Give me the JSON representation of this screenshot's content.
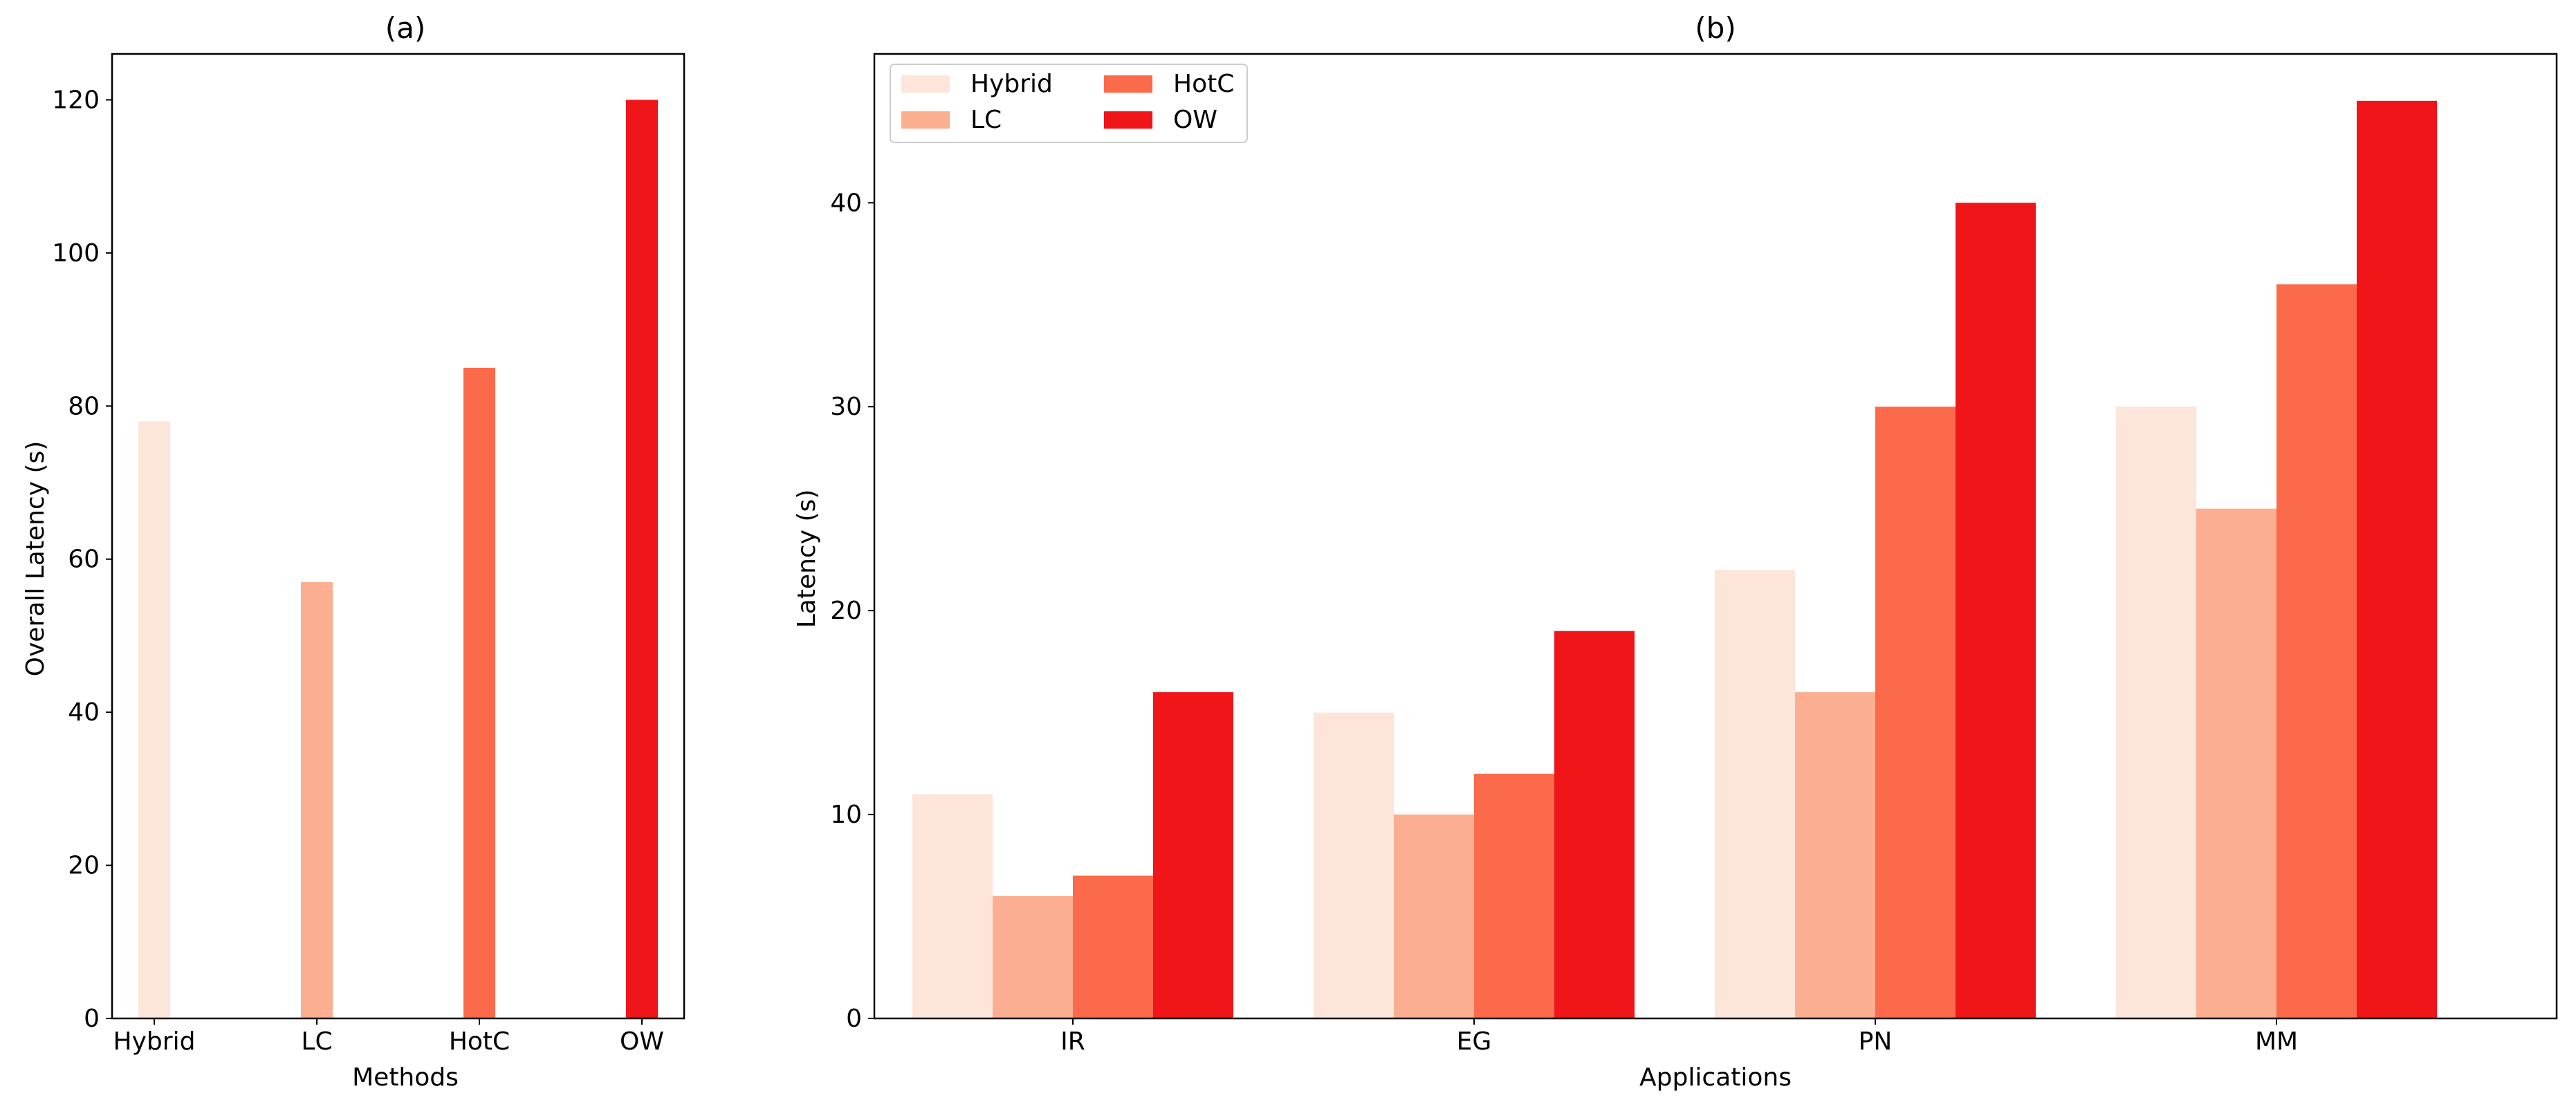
{
  "chart_data": [
    {
      "type": "bar",
      "title": "(a)",
      "xlabel": "Methods",
      "ylabel": "Overall Latency (s)",
      "categories": [
        "Hybrid",
        "LC",
        "HotC",
        "OW"
      ],
      "values": [
        78,
        57,
        85,
        120
      ],
      "colors": [
        "#fee5d9",
        "#fcae91",
        "#fb6a4a",
        "#ef1519"
      ],
      "ylim": [
        0,
        126
      ],
      "yticks": [
        0,
        20,
        40,
        60,
        80,
        100,
        120
      ],
      "grid": false,
      "legend": null
    },
    {
      "type": "bar",
      "title": "(b)",
      "xlabel": "Applications",
      "ylabel": "Latency (s)",
      "categories": [
        "IR",
        "EG",
        "PN",
        "MM"
      ],
      "series": [
        {
          "name": "Hybrid",
          "color": "#fee5d9",
          "values": [
            11,
            15,
            22,
            30
          ]
        },
        {
          "name": "LC",
          "color": "#fcae91",
          "values": [
            6,
            10,
            16,
            25
          ]
        },
        {
          "name": "HotC",
          "color": "#fb6a4a",
          "values": [
            7,
            12,
            30,
            36
          ]
        },
        {
          "name": "OW",
          "color": "#ef1519",
          "values": [
            16,
            19,
            40,
            45
          ]
        }
      ],
      "ylim": [
        0,
        47.3
      ],
      "yticks": [
        0,
        10,
        20,
        30,
        40
      ],
      "grid": false,
      "legend": "top-left",
      "legend_columns": 2
    }
  ]
}
